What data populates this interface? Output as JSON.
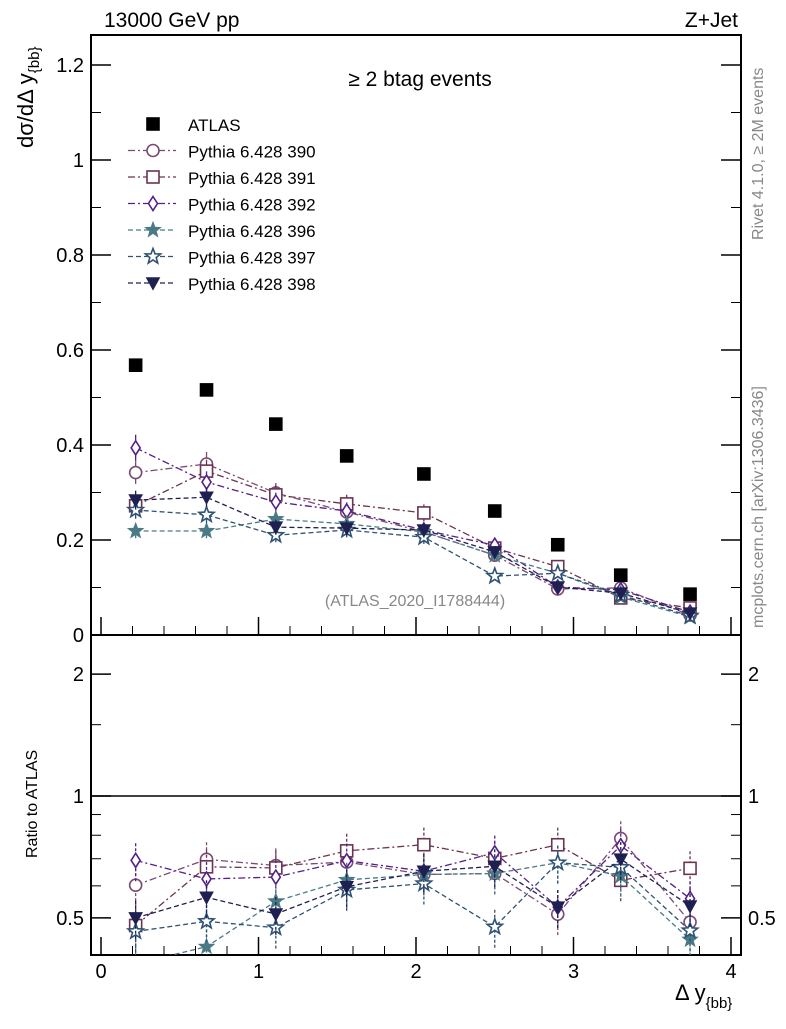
{
  "header": {
    "left": "13000 GeV pp",
    "right": "Z+Jet"
  },
  "side_labels": {
    "rivet": "Rivet 4.1.0, ≥ 2M events",
    "mcplots": "mcplots.cern.ch [arXiv:1306.3436]"
  },
  "chart_data": {
    "type": "scatter",
    "title": "≥ 2 btag events",
    "analysis_label": "(ATLAS_2020_I1788444)",
    "xlabel": "Δ y",
    "xlabel_sub": "{bb}",
    "ylabel": "dσ/dΔ y",
    "ylabel_sub": "{bb}",
    "ratio_ylabel": "Ratio to ATLAS",
    "xlim": [
      -0.06,
      4.06
    ],
    "ylim": [
      0,
      1.26
    ],
    "ratio_ylim": [
      0.4,
      2.6
    ],
    "ratio_scale": "log",
    "xticks": [
      "0",
      "1",
      "2",
      "3",
      "4"
    ],
    "yticks": [
      "0",
      "0.2",
      "0.4",
      "0.6",
      "0.8",
      "1",
      "1.2"
    ],
    "ratio_yticks_left": [
      "0.5",
      "1",
      "2"
    ],
    "ratio_yticks_right": [
      "0.5",
      "1",
      "2"
    ],
    "legend_position": "top-left",
    "x": [
      0.22,
      0.67,
      1.11,
      1.56,
      2.05,
      2.5,
      2.9,
      3.3,
      3.74
    ],
    "reference": {
      "name": "ATLAS",
      "color": "#000000",
      "marker": "filled-square",
      "values": [
        0.568,
        0.516,
        0.444,
        0.377,
        0.339,
        0.261,
        0.19,
        0.126,
        0.086
      ]
    },
    "series": [
      {
        "name": "Pythia 6.428 390",
        "color": "#7b4a72",
        "marker": "open-circle",
        "line": "dashdot",
        "yerr_rel": 0.07,
        "values": [
          0.342,
          0.36,
          0.299,
          0.259,
          0.217,
          0.168,
          0.097,
          0.099,
          0.042
        ]
      },
      {
        "name": "Pythia 6.428 391",
        "color": "#6a3452",
        "marker": "open-square",
        "line": "dashdot",
        "yerr_rel": 0.07,
        "values": [
          0.272,
          0.345,
          0.295,
          0.276,
          0.257,
          0.183,
          0.144,
          0.078,
          0.057
        ]
      },
      {
        "name": "Pythia 6.428 392",
        "color": "#551f88",
        "marker": "open-diamond",
        "line": "dashdot",
        "yerr_rel": 0.07,
        "values": [
          0.394,
          0.322,
          0.28,
          0.261,
          0.221,
          0.189,
          0.101,
          0.095,
          0.048
        ]
      },
      {
        "name": "Pythia 6.428 396",
        "color": "#4b7a86",
        "marker": "filled-star",
        "line": "dashed",
        "yerr_rel": 0.07,
        "values": [
          0.219,
          0.219,
          0.244,
          0.234,
          0.217,
          0.168,
          0.13,
          0.08,
          0.038
        ]
      },
      {
        "name": "Pythia 6.428 397",
        "color": "#2f5372",
        "marker": "open-star",
        "line": "dashed",
        "yerr_rel": 0.07,
        "values": [
          0.263,
          0.253,
          0.21,
          0.221,
          0.206,
          0.124,
          0.13,
          0.084,
          0.04
        ]
      },
      {
        "name": "Pythia 6.428 398",
        "color": "#1e2052",
        "marker": "filled-triangle-down",
        "line": "dashed",
        "yerr_rel": 0.07,
        "values": [
          0.284,
          0.29,
          0.227,
          0.225,
          0.221,
          0.175,
          0.101,
          0.088,
          0.046
        ]
      }
    ]
  }
}
